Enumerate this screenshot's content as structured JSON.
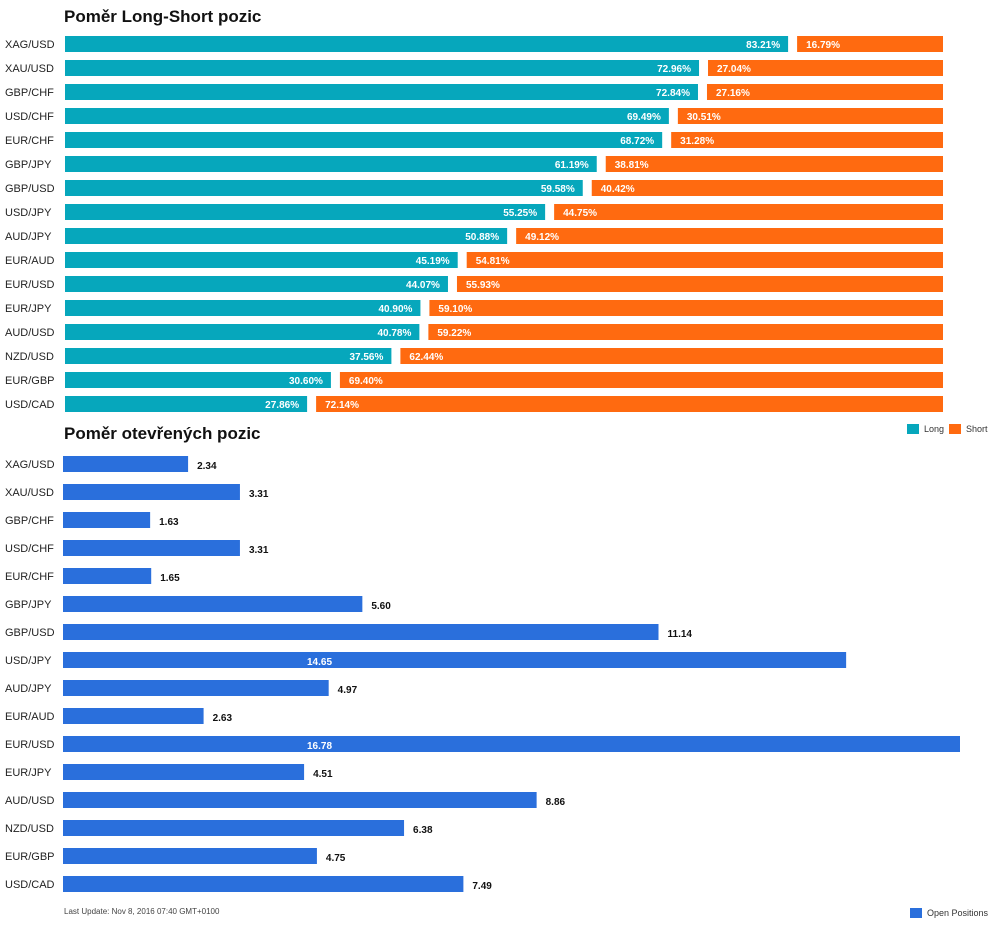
{
  "colors": {
    "long": "#06a7bc",
    "short": "#ff6a10",
    "open": "#2a6fdc"
  },
  "chart_data": [
    {
      "type": "bar",
      "orientation": "horizontal",
      "stacked_percent": true,
      "title": "Poměr Long-Short pozic",
      "categories": [
        "XAG/USD",
        "XAU/USD",
        "GBP/CHF",
        "USD/CHF",
        "EUR/CHF",
        "GBP/JPY",
        "GBP/USD",
        "USD/JPY",
        "AUD/JPY",
        "EUR/AUD",
        "EUR/USD",
        "EUR/JPY",
        "AUD/USD",
        "NZD/USD",
        "EUR/GBP",
        "USD/CAD"
      ],
      "series": [
        {
          "name": "Long",
          "values": [
            83.21,
            72.96,
            72.84,
            69.49,
            68.72,
            61.19,
            59.58,
            55.25,
            50.88,
            45.19,
            44.07,
            40.9,
            40.78,
            37.56,
            30.6,
            27.86
          ]
        },
        {
          "name": "Short",
          "values": [
            16.79,
            27.04,
            27.16,
            30.51,
            31.28,
            38.81,
            40.42,
            44.75,
            49.12,
            54.81,
            55.93,
            59.1,
            59.22,
            62.44,
            69.4,
            72.14
          ]
        }
      ],
      "labels_long": [
        "83.21%",
        "72.96%",
        "72.84%",
        "69.49%",
        "68.72%",
        "61.19%",
        "59.58%",
        "55.25%",
        "50.88%",
        "45.19%",
        "44.07%",
        "40.90%",
        "40.78%",
        "37.56%",
        "30.60%",
        "27.86%"
      ],
      "labels_short": [
        "16.79%",
        "27.04%",
        "27.16%",
        "30.51%",
        "31.28%",
        "38.81%",
        "40.42%",
        "44.75%",
        "49.12%",
        "54.81%",
        "55.93%",
        "59.10%",
        "59.22%",
        "62.44%",
        "69.40%",
        "72.14%"
      ],
      "legend": [
        "Long",
        "Short"
      ],
      "legend_position": "bottom-right"
    },
    {
      "type": "bar",
      "orientation": "horizontal",
      "title": "Poměr otevřených pozic",
      "categories": [
        "XAG/USD",
        "XAU/USD",
        "GBP/CHF",
        "USD/CHF",
        "EUR/CHF",
        "GBP/JPY",
        "GBP/USD",
        "USD/JPY",
        "AUD/JPY",
        "EUR/AUD",
        "EUR/USD",
        "EUR/JPY",
        "AUD/USD",
        "NZD/USD",
        "EUR/GBP",
        "USD/CAD"
      ],
      "series": [
        {
          "name": "Open Positions",
          "values": [
            2.34,
            3.31,
            1.63,
            3.31,
            1.65,
            5.6,
            11.14,
            14.65,
            4.97,
            2.63,
            16.78,
            4.51,
            8.86,
            6.38,
            4.75,
            7.49
          ]
        }
      ],
      "labels": [
        "2.34",
        "3.31",
        "1.63",
        "3.31",
        "1.65",
        "5.60",
        "11.14",
        "14.65",
        "4.97",
        "2.63",
        "16.78",
        "4.51",
        "8.86",
        "6.38",
        "4.75",
        "7.49"
      ],
      "legend": [
        "Open Positions"
      ],
      "legend_position": "bottom-right"
    }
  ],
  "footer": {
    "last_update": "Last Update: Nov 8, 2016 07:40 GMT+0100"
  }
}
